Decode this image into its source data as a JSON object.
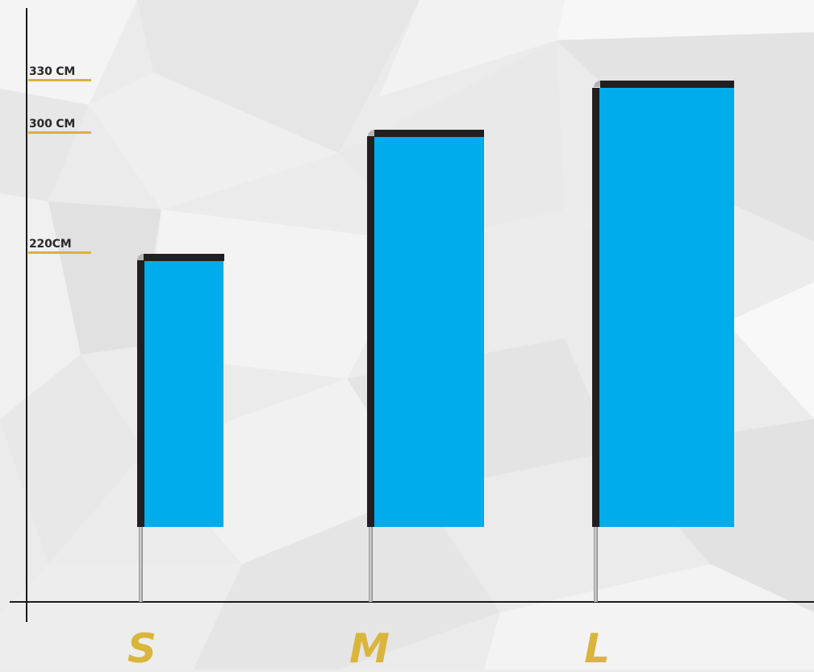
{
  "height_labels": [
    {
      "text": "330 CM",
      "cm": 330
    },
    {
      "text": "300 CM",
      "cm": 300
    },
    {
      "text": "220CM",
      "cm": 220
    }
  ],
  "flags": [
    {
      "size": "S",
      "height_cm": 220
    },
    {
      "size": "M",
      "height_cm": 300
    },
    {
      "size": "L",
      "height_cm": 330
    }
  ],
  "colors": {
    "flag_fabric": "#00acec",
    "pole_frame": "#231f20",
    "label_accent": "#d8b33a",
    "axis": "#1a1a1a"
  }
}
